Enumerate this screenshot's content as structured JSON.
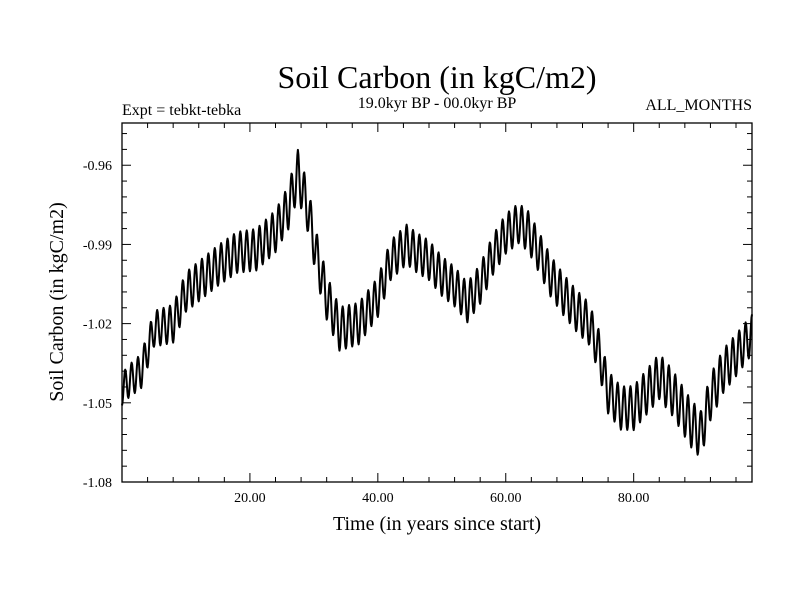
{
  "chart_data": {
    "type": "line",
    "title": "Soil Carbon (in kgC/m2)",
    "subtitle_left": "Expt = tebkt-tebka",
    "subtitle_center": "19.0kyr BP - 00.0kyr BP",
    "subtitle_right": "ALL_MONTHS",
    "xlabel": "Time (in years since start)",
    "ylabel": "Soil Carbon (in kgC/m2)",
    "xlim": [
      0,
      98.5
    ],
    "ylim": [
      -1.08,
      -0.944
    ],
    "xticks": [
      20,
      40,
      60,
      80
    ],
    "xtick_labels": [
      "20.00",
      "40.00",
      "60.00",
      "80.00"
    ],
    "yticks": [
      -0.96,
      -0.99,
      -1.02,
      -1.05,
      -1.08
    ],
    "ytick_labels": [
      "-0.96",
      "-0.99",
      "-1.02",
      "-1.05",
      "-1.08"
    ],
    "grid": false,
    "line_color": "#000000",
    "series": [
      {
        "name": "Soil Carbon",
        "trend": {
          "x": [
            0,
            1,
            3,
            5,
            8,
            10,
            13,
            15,
            18,
            21,
            24,
            26,
            27.5,
            29,
            30.5,
            32,
            34,
            37,
            40,
            42,
            44.5,
            46,
            48,
            50,
            52,
            54,
            56,
            58,
            60,
            62,
            63.5,
            65,
            67,
            69,
            71,
            73,
            74.5,
            76,
            78,
            80,
            82,
            84,
            86,
            87.5,
            89,
            90.5,
            92,
            94,
            96,
            98.5
          ],
          "y": [
            -1.045,
            -1.042,
            -1.038,
            -1.022,
            -1.02,
            -1.008,
            -1.002,
            -0.998,
            -0.993,
            -0.992,
            -0.985,
            -0.976,
            -0.963,
            -0.976,
            -0.995,
            -1.01,
            -1.022,
            -1.02,
            -1.01,
            -0.996,
            -0.99,
            -0.993,
            -0.996,
            -1.002,
            -1.006,
            -1.012,
            -1.005,
            -0.994,
            -0.986,
            -0.982,
            -0.985,
            -0.992,
            -1.002,
            -1.009,
            -1.015,
            -1.02,
            -1.03,
            -1.046,
            -1.052,
            -1.052,
            -1.046,
            -1.04,
            -1.046,
            -1.052,
            -1.058,
            -1.062,
            -1.048,
            -1.038,
            -1.032,
            -1.024
          ]
        },
        "oscillation": {
          "period_years": 1.0,
          "amplitude": [
            [
              0,
              0.006
            ],
            [
              10,
              0.0075
            ],
            [
              25,
              0.008
            ],
            [
              28,
              0.009
            ],
            [
              40,
              0.0075
            ],
            [
              60,
              0.0075
            ],
            [
              75,
              0.008
            ],
            [
              90,
              0.009
            ],
            [
              98.5,
              0.0075
            ]
          ]
        }
      }
    ]
  }
}
